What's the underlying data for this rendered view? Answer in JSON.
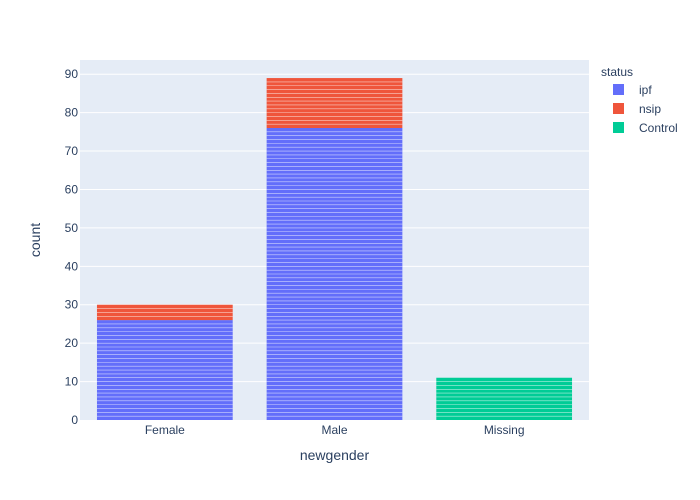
{
  "chart_data": {
    "type": "bar",
    "barmode": "stack",
    "categories": [
      "Female",
      "Male",
      "Missing"
    ],
    "series": [
      {
        "name": "ipf",
        "color": "#636efa",
        "values": [
          26,
          76,
          0
        ]
      },
      {
        "name": "nsip",
        "color": "#ef553b",
        "values": [
          4,
          13,
          0
        ]
      },
      {
        "name": "Control",
        "color": "#00cc96",
        "values": [
          0,
          0,
          11
        ]
      }
    ],
    "xlabel": "newgender",
    "ylabel": "count",
    "ylim": [
      0,
      93.7
    ],
    "yticks": [
      0,
      10,
      20,
      30,
      40,
      50,
      60,
      70,
      80,
      90
    ],
    "grid": true,
    "legend": {
      "title": "status",
      "position": "top-right"
    },
    "colors": {
      "plot_bg": "#e5ecf6",
      "grid": "#ffffff",
      "text": "#2a3f5f"
    }
  }
}
